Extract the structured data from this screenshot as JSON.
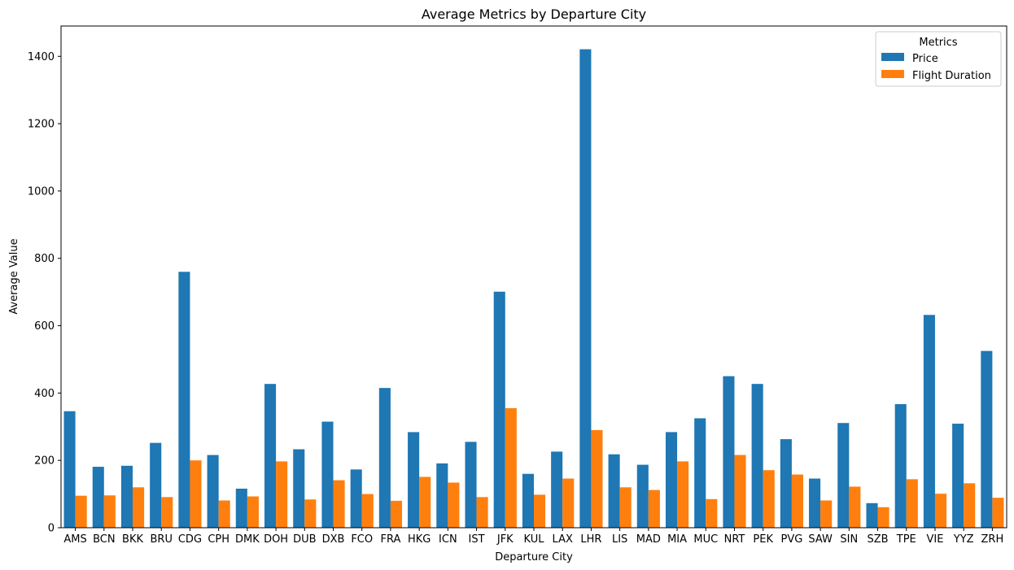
{
  "chart_data": {
    "type": "bar",
    "title": "Average Metrics by Departure City",
    "xlabel": "Departure City",
    "ylabel": "Average Value",
    "ylim": [
      0,
      1490
    ],
    "yticks": [
      0,
      200,
      400,
      600,
      800,
      1000,
      1200,
      1400
    ],
    "grid": false,
    "legend": {
      "title": "Metrics",
      "placement": "top-right"
    },
    "categories": [
      "AMS",
      "BCN",
      "BKK",
      "BRU",
      "CDG",
      "CPH",
      "DMK",
      "DOH",
      "DUB",
      "DXB",
      "FCO",
      "FRA",
      "HKG",
      "ICN",
      "IST",
      "JFK",
      "KUL",
      "LAX",
      "LHR",
      "LIS",
      "MAD",
      "MIA",
      "MUC",
      "NRT",
      "PEK",
      "PVG",
      "SAW",
      "SIN",
      "SZB",
      "TPE",
      "VIE",
      "YYZ",
      "ZRH"
    ],
    "series": [
      {
        "name": "Price",
        "color": "#1f77b4",
        "values": [
          346,
          181,
          184,
          252,
          760,
          216,
          116,
          427,
          233,
          315,
          173,
          415,
          284,
          191,
          255,
          701,
          160,
          226,
          1421,
          218,
          187,
          284,
          325,
          450,
          427,
          263,
          146,
          311,
          73,
          367,
          632,
          309,
          525
        ]
      },
      {
        "name": "Flight Duration",
        "color": "#ff7f0e",
        "values": [
          95,
          96,
          120,
          91,
          200,
          81,
          93,
          197,
          84,
          141,
          100,
          80,
          151,
          134,
          91,
          355,
          98,
          146,
          290,
          120,
          112,
          197,
          85,
          216,
          171,
          158,
          81,
          122,
          61,
          144,
          101,
          132,
          89
        ]
      }
    ]
  }
}
